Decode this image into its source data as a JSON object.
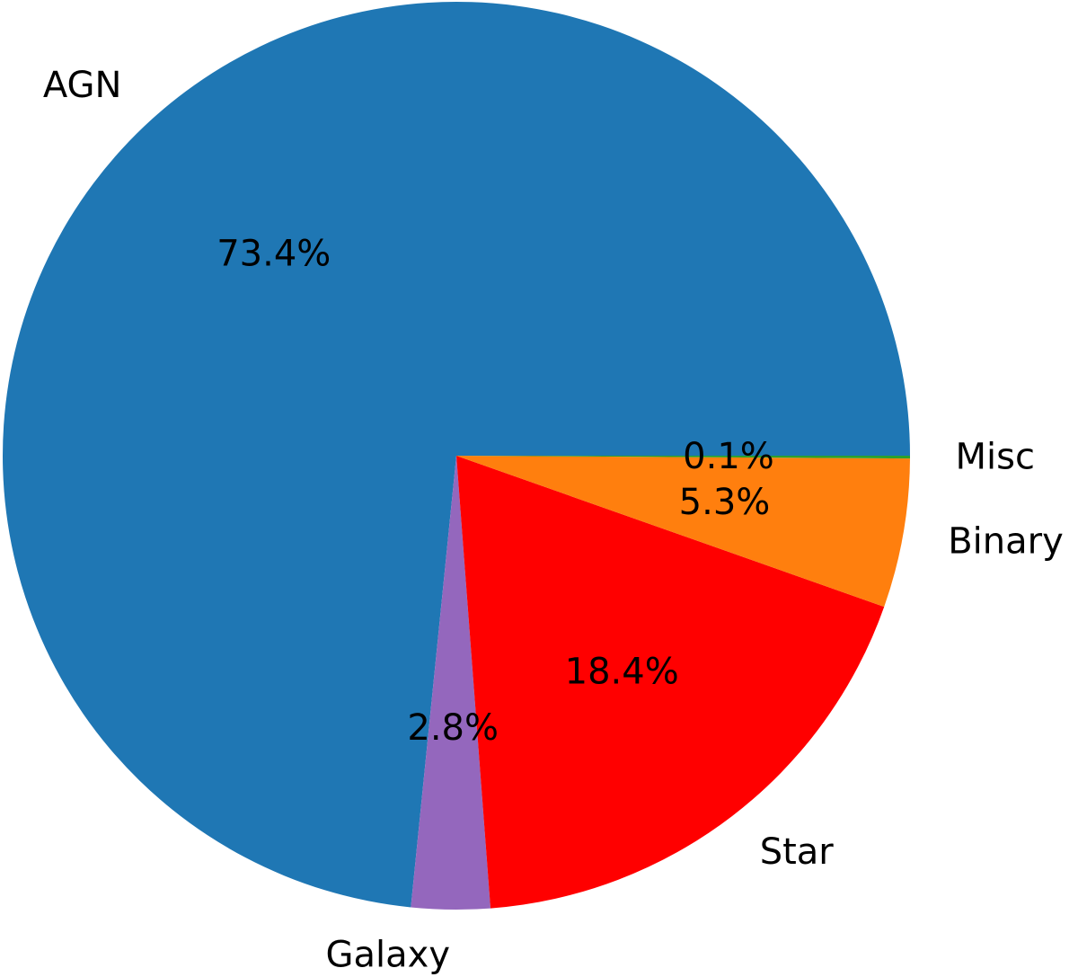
{
  "chart_data": {
    "type": "pie",
    "categories": [
      "AGN",
      "Galaxy",
      "Star",
      "Binary",
      "Misc"
    ],
    "values": [
      73.4,
      2.8,
      18.4,
      5.3,
      0.1
    ],
    "value_labels": [
      "73.4%",
      "2.8%",
      "18.4%",
      "5.3%",
      "0.1%"
    ],
    "colors": [
      "#1f77b4",
      "#9467bd",
      "#ff0000",
      "#ff7f0e",
      "#2ca02c"
    ]
  }
}
